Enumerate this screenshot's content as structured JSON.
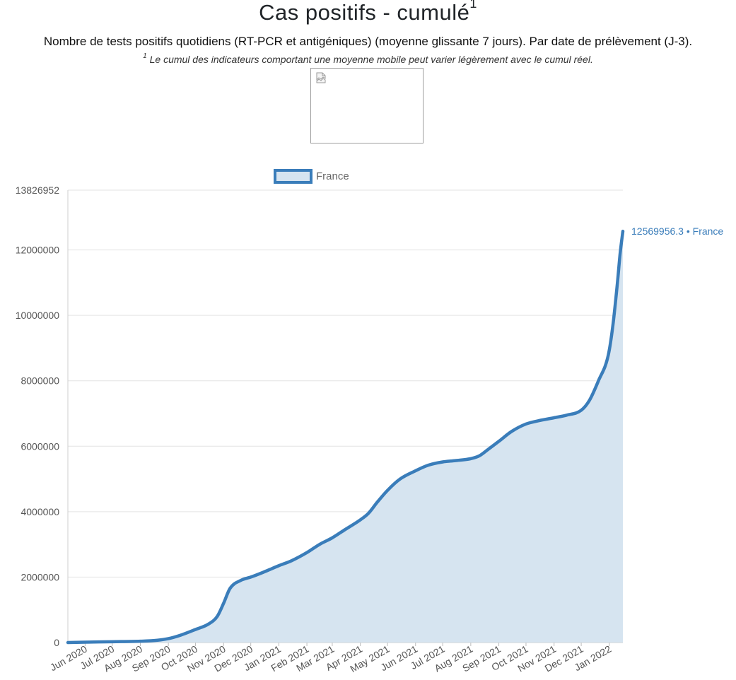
{
  "header": {
    "title": "Cas positifs - cumulé",
    "title_sup": "1",
    "subtitle": "Nombre de tests positifs quotidiens (RT-PCR et antigéniques) (moyenne glissante 7 jours). Par date de prélèvement (J-3).",
    "note_sup": "1",
    "note": "Le cumul des indicateurs comportant une moyenne mobile peut varier légèrement avec le cumul réel."
  },
  "image_placeholder": {
    "icon": "broken-image-icon"
  },
  "colors": {
    "line": "#3a7dba",
    "fill": "#d6e4f0",
    "grid": "#e3e3e3",
    "axis_text": "#555555"
  },
  "chart_data": {
    "type": "area",
    "legend_position": "top-center",
    "grid": true,
    "ylim": [
      0,
      13826952
    ],
    "y_ticks": [
      "0",
      "2000000",
      "4000000",
      "6000000",
      "8000000",
      "10000000",
      "12000000",
      "13826952"
    ],
    "y_tick_values": [
      0,
      2000000,
      4000000,
      6000000,
      8000000,
      10000000,
      12000000,
      13826952
    ],
    "x_ticks": [
      "Jun 2020",
      "Jul 2020",
      "Aug 2020",
      "Sep 2020",
      "Oct 2020",
      "Nov 2020",
      "Dec 2020",
      "Jan 2021",
      "Feb 2021",
      "Mar 2021",
      "Apr 2021",
      "May 2021",
      "Jun 2021",
      "Jul 2021",
      "Aug 2021",
      "Sep 2021",
      "Oct 2021",
      "Nov 2021",
      "Dec 2021",
      "Jan 2022"
    ],
    "xlim": [
      "2020-05-13",
      "2022-01-16"
    ],
    "series": [
      {
        "name": "France",
        "end_label": "12569956.3 • France",
        "points": [
          [
            "2020-05-13",
            0
          ],
          [
            "2020-06-01",
            10000
          ],
          [
            "2020-07-01",
            25000
          ],
          [
            "2020-08-01",
            40000
          ],
          [
            "2020-08-20",
            70000
          ],
          [
            "2020-09-01",
            120000
          ],
          [
            "2020-09-15",
            230000
          ],
          [
            "2020-10-01",
            400000
          ],
          [
            "2020-10-15",
            560000
          ],
          [
            "2020-10-25",
            800000
          ],
          [
            "2020-11-01",
            1200000
          ],
          [
            "2020-11-08",
            1650000
          ],
          [
            "2020-11-20",
            1900000
          ],
          [
            "2020-12-01",
            2000000
          ],
          [
            "2020-12-15",
            2150000
          ],
          [
            "2021-01-01",
            2350000
          ],
          [
            "2021-01-15",
            2500000
          ],
          [
            "2021-02-01",
            2750000
          ],
          [
            "2021-02-15",
            3000000
          ],
          [
            "2021-03-01",
            3200000
          ],
          [
            "2021-03-15",
            3450000
          ],
          [
            "2021-04-01",
            3750000
          ],
          [
            "2021-04-10",
            3950000
          ],
          [
            "2021-04-20",
            4300000
          ],
          [
            "2021-05-01",
            4650000
          ],
          [
            "2021-05-15",
            5000000
          ],
          [
            "2021-06-01",
            5250000
          ],
          [
            "2021-06-15",
            5420000
          ],
          [
            "2021-07-01",
            5520000
          ],
          [
            "2021-07-15",
            5560000
          ],
          [
            "2021-08-01",
            5620000
          ],
          [
            "2021-08-10",
            5700000
          ],
          [
            "2021-08-20",
            5900000
          ],
          [
            "2021-09-01",
            6150000
          ],
          [
            "2021-09-15",
            6450000
          ],
          [
            "2021-10-01",
            6680000
          ],
          [
            "2021-10-15",
            6780000
          ],
          [
            "2021-11-01",
            6870000
          ],
          [
            "2021-11-15",
            6950000
          ],
          [
            "2021-12-01",
            7100000
          ],
          [
            "2021-12-10",
            7400000
          ],
          [
            "2021-12-20",
            8000000
          ],
          [
            "2021-12-31",
            8800000
          ],
          [
            "2022-01-05",
            9700000
          ],
          [
            "2022-01-10",
            11000000
          ],
          [
            "2022-01-13",
            11900000
          ],
          [
            "2022-01-16",
            12569956.3
          ]
        ]
      }
    ]
  }
}
